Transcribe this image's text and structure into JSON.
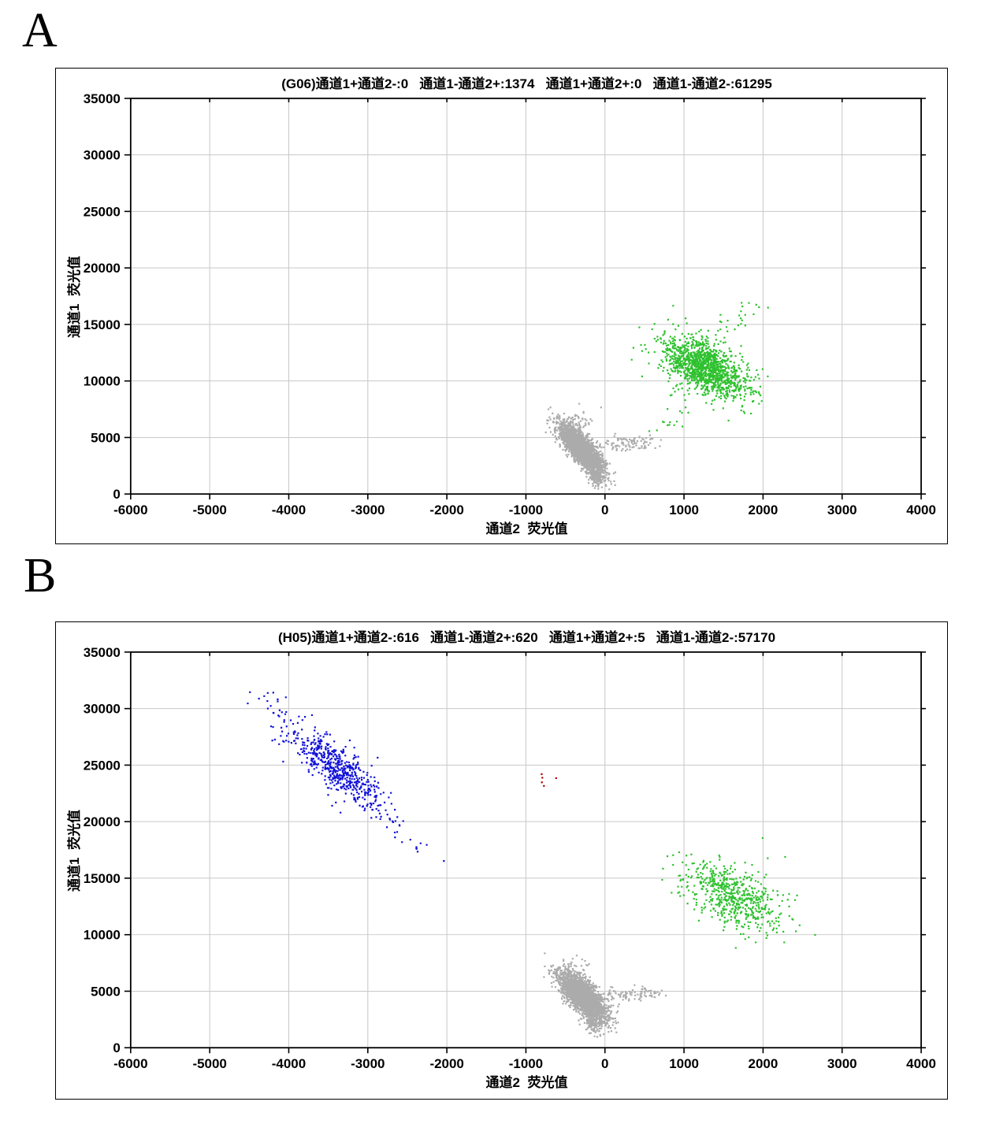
{
  "figure": {
    "panels": [
      {
        "letter": "A"
      },
      {
        "letter": "B"
      }
    ]
  },
  "theme": {
    "background": "#ffffff",
    "frame_color": "#000000",
    "grid_color": "#c8c8c8",
    "text_color": "#000000",
    "gray_points": "#ababab",
    "green_points": "#2ec12e",
    "blue_points": "#1010d8",
    "red_points": "#b40000"
  },
  "chart_data": [
    {
      "type": "scatter",
      "panel_label": "A",
      "well": "G06",
      "title": "(G06)通道1+通道2-:0   通道1-通道2+:1374   通道1+通道2+:0   通道1-通道2-:61295",
      "quadrant_counts": [
        {
          "label": "通道1+通道2-",
          "value": 0
        },
        {
          "label": "通道1-通道2+",
          "value": 1374
        },
        {
          "label": "通道1+通道2+",
          "value": 0
        },
        {
          "label": "通道1-通道2-",
          "value": 61295
        }
      ],
      "xlabel": "通道2  荧光值",
      "ylabel": "通道1  荧光值",
      "xlim": [
        -6000,
        4000
      ],
      "ylim": [
        0,
        35000
      ],
      "xtick_step": 1000,
      "ytick_step": 5000,
      "grid": true,
      "clusters": [
        {
          "name": "double-negative-gray",
          "color": "#ababab",
          "reported_count": 61295,
          "blobs": [
            {
              "cx": -290,
              "cy": 3950,
              "sx": 135,
              "sy": 1050,
              "rho": -0.78,
              "n": 2700
            }
          ],
          "trails": [
            {
              "x1": -160,
              "y1": 2200,
              "x2": -90,
              "y2": 850,
              "jx": 45,
              "jy": 260,
              "n": 110
            },
            {
              "x1": -20,
              "y1": 4350,
              "x2": 600,
              "y2": 4650,
              "jx": 70,
              "jy": 330,
              "n": 100
            },
            {
              "x1": -430,
              "y1": 5700,
              "x2": -260,
              "y2": 7400,
              "jx": 100,
              "jy": 380,
              "n": 45
            }
          ],
          "points": []
        },
        {
          "name": "ch2-positive-green",
          "color": "#2ec12e",
          "reported_count": 1374,
          "blobs": [
            {
              "cx": 1265,
              "cy": 11200,
              "sx": 265,
              "sy": 1330,
              "rho": -0.55,
              "n": 1310
            }
          ],
          "trails": [
            {
              "x1": 690,
              "y1": 5300,
              "x2": 1030,
              "y2": 8700,
              "jx": 90,
              "jy": 360,
              "n": 20
            },
            {
              "x1": 1430,
              "y1": 14100,
              "x2": 1950,
              "y2": 17150,
              "jx": 130,
              "jy": 420,
              "n": 26
            }
          ],
          "points": [
            [
              470,
              10400
            ],
            [
              1995,
              11050
            ],
            [
              2060,
              10400
            ],
            [
              1915,
              9000
            ]
          ]
        }
      ]
    },
    {
      "type": "scatter",
      "panel_label": "B",
      "well": "H05",
      "title": "(H05)通道1+通道2-:616   通道1-通道2+:620   通道1+通道2+:5   通道1-通道2-:57170",
      "quadrant_counts": [
        {
          "label": "通道1+通道2-",
          "value": 616
        },
        {
          "label": "通道1-通道2+",
          "value": 620
        },
        {
          "label": "通道1+通道2+",
          "value": 5
        },
        {
          "label": "通道1-通道2-",
          "value": 57170
        }
      ],
      "xlabel": "通道2  荧光值",
      "ylabel": "通道1  荧光值",
      "xlim": [
        -6000,
        4000
      ],
      "ylim": [
        0,
        35000
      ],
      "xtick_step": 1000,
      "ytick_step": 5000,
      "grid": true,
      "clusters": [
        {
          "name": "double-negative-gray",
          "color": "#ababab",
          "reported_count": 57170,
          "blobs": [
            {
              "cx": -280,
              "cy": 4550,
              "sx": 145,
              "sy": 1050,
              "rho": -0.72,
              "n": 2700
            }
          ],
          "trails": [
            {
              "x1": -170,
              "y1": 2700,
              "x2": -105,
              "y2": 1350,
              "jx": 45,
              "jy": 280,
              "n": 110
            },
            {
              "x1": -10,
              "y1": 4700,
              "x2": 660,
              "y2": 4900,
              "jx": 75,
              "jy": 330,
              "n": 95
            },
            {
              "x1": -430,
              "y1": 6200,
              "x2": -300,
              "y2": 7800,
              "jx": 100,
              "jy": 380,
              "n": 35
            }
          ],
          "points": []
        },
        {
          "name": "ch2-positive-green",
          "color": "#2ec12e",
          "reported_count": 620,
          "blobs": [
            {
              "cx": 1625,
              "cy": 13350,
              "sx": 305,
              "sy": 1500,
              "rho": -0.5,
              "n": 585
            }
          ],
          "trails": [],
          "points": [
            [
              1995,
              18550
            ],
            [
              2430,
              13470
            ],
            [
              2280,
              16880
            ],
            [
              1655,
              8830
            ],
            [
              955,
              14780
            ],
            [
              2140,
              11000
            ]
          ]
        },
        {
          "name": "ch1-positive-blue",
          "color": "#1010d8",
          "reported_count": 616,
          "blobs": [
            {
              "cx": -3420,
              "cy": 24900,
              "sx": 330,
              "sy": 2050,
              "rho": -0.85,
              "n": 565
            }
          ],
          "trails": [
            {
              "x1": -4380,
              "y1": 31850,
              "x2": -4000,
              "y2": 29200,
              "jx": 70,
              "jy": 350,
              "n": 13
            },
            {
              "x1": -2950,
              "y1": 21300,
              "x2": -2330,
              "y2": 17400,
              "jx": 80,
              "jy": 420,
              "n": 16
            }
          ],
          "points": [
            [
              -2370,
              17350
            ],
            [
              -2600,
              19700
            ]
          ]
        },
        {
          "name": "double-positive-red",
          "color": "#b40000",
          "reported_count": 5,
          "blobs": [],
          "trails": [],
          "points": [
            [
              -800,
              24200
            ],
            [
              -792,
              23880
            ],
            [
              -798,
              23480
            ],
            [
              -772,
              23160
            ],
            [
              -618,
              23850
            ]
          ]
        }
      ]
    }
  ]
}
